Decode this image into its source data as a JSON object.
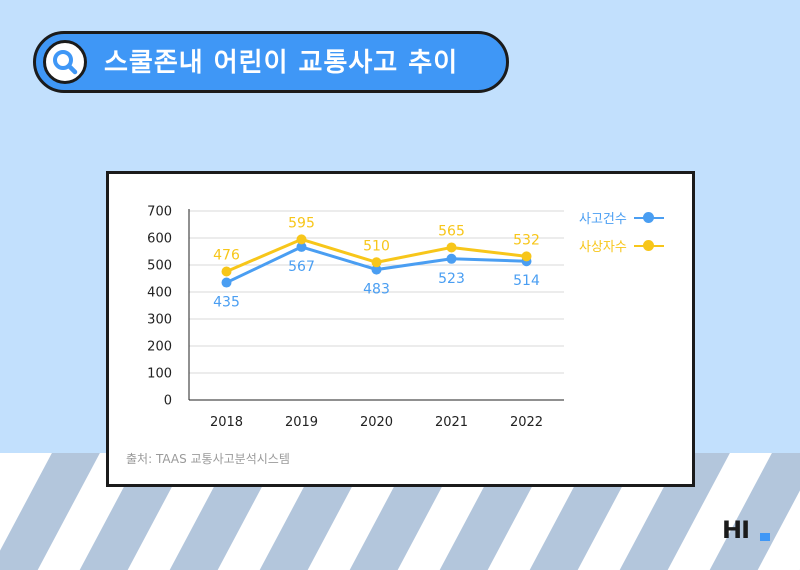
{
  "title": "스쿨존내 어린이 교통사고 추이",
  "source": "출처: TAAS 교통사고분석시스템",
  "logo": "HI",
  "colors": {
    "accident": "#4a9ef2",
    "casualty": "#f7c61a",
    "grid": "#d9d9d9"
  },
  "chart_data": {
    "type": "line",
    "categories": [
      "2018",
      "2019",
      "2020",
      "2021",
      "2022"
    ],
    "series": [
      {
        "name": "사고건수",
        "values": [
          435,
          567,
          483,
          523,
          514
        ],
        "color": "#4a9ef2"
      },
      {
        "name": "사상자수",
        "values": [
          476,
          595,
          510,
          565,
          532
        ],
        "color": "#f7c61a"
      }
    ],
    "ylim": [
      0,
      700
    ],
    "yticks": [
      0,
      100,
      200,
      300,
      400,
      500,
      600,
      700
    ],
    "grid": true,
    "legend": "right"
  }
}
